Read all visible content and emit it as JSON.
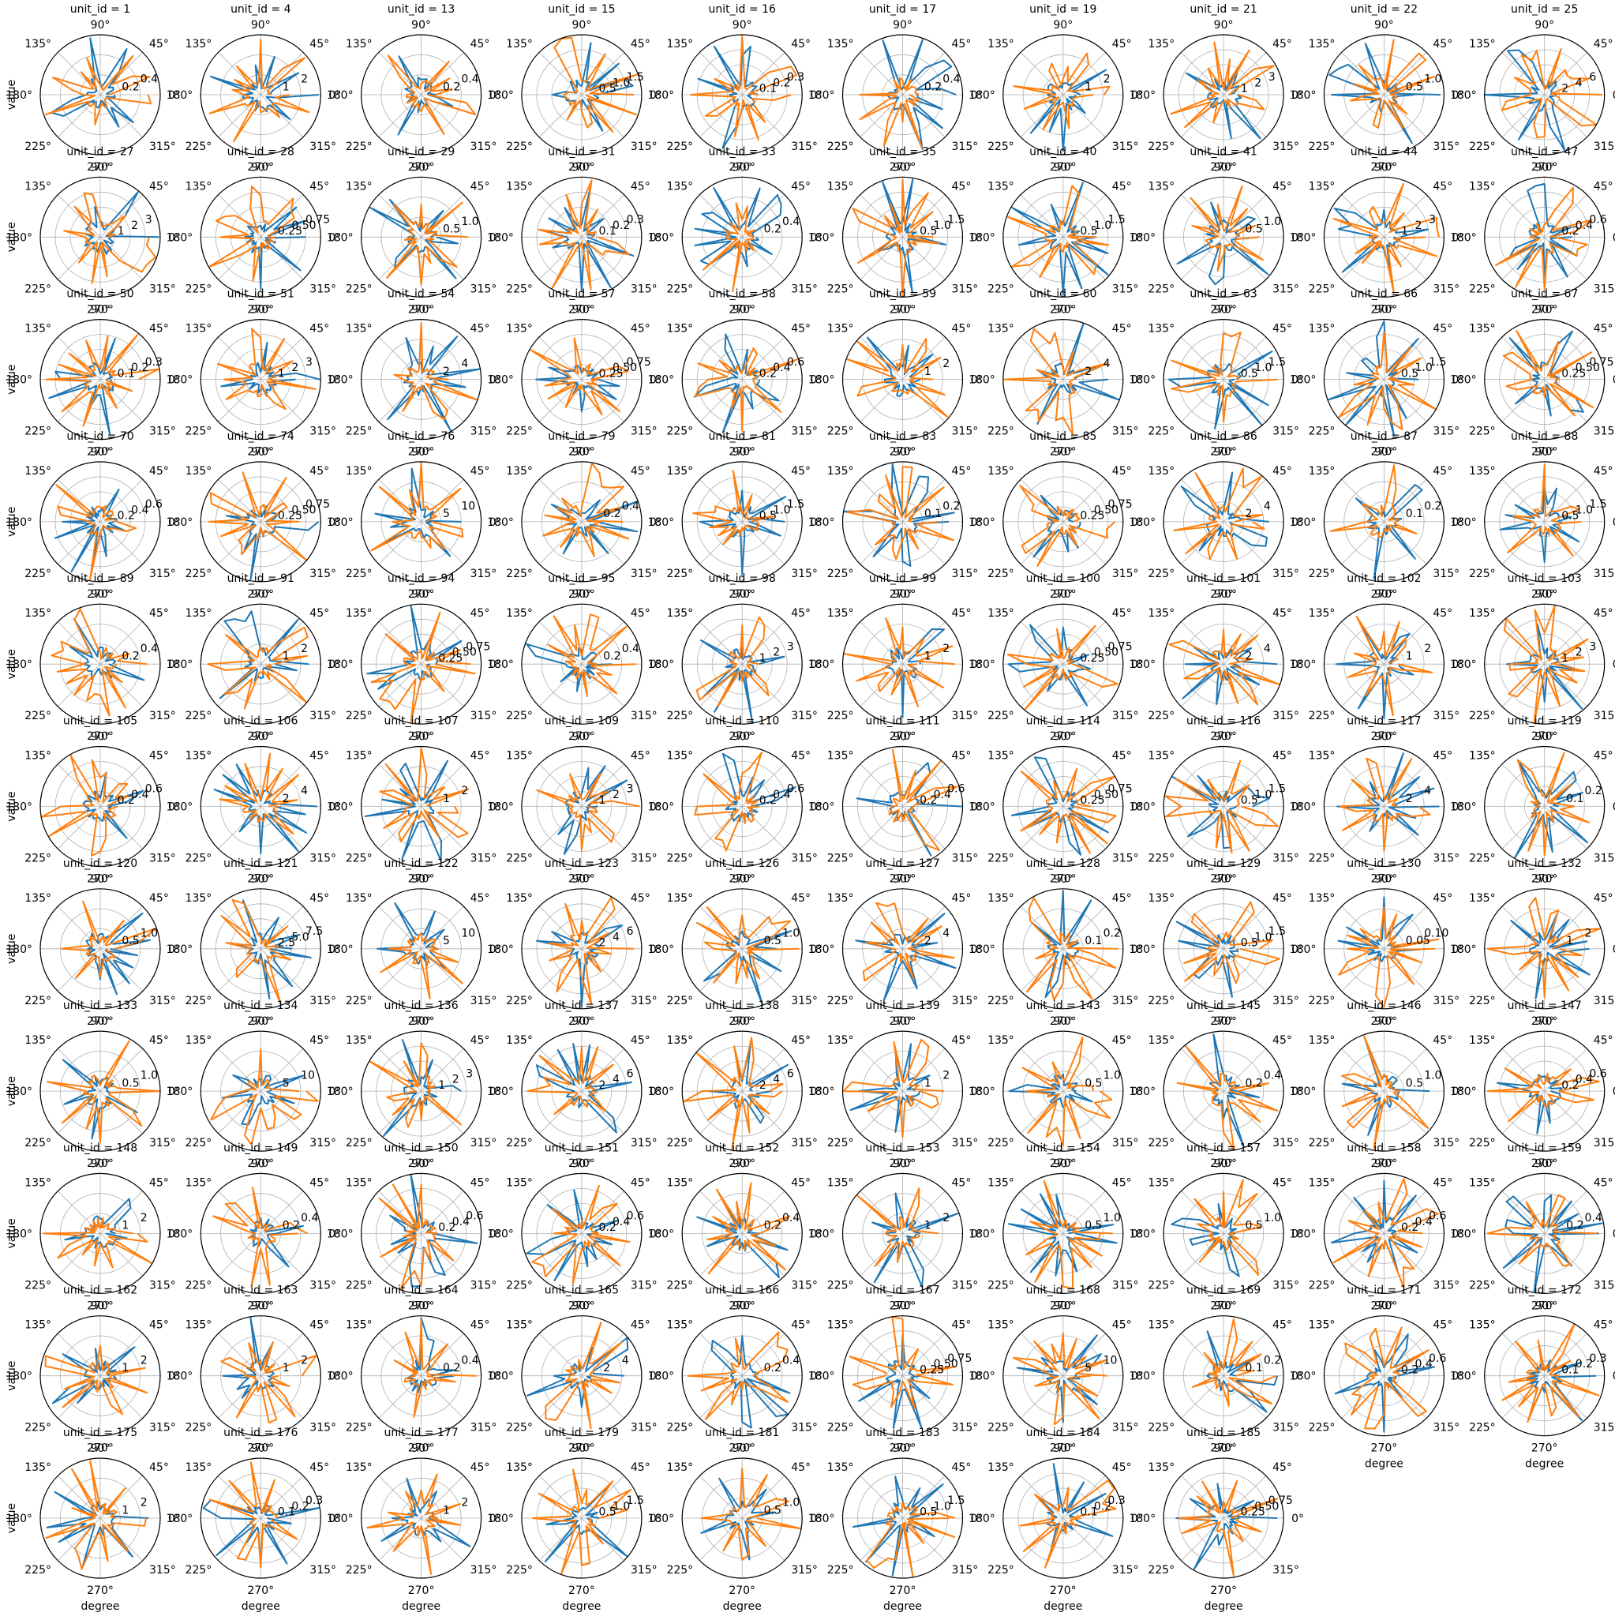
{
  "chart_data": {
    "type": "polar-line-grid",
    "colors": {
      "series_a": "#1f77b4",
      "series_b": "#ff7f0e",
      "grid": "#b0b0b0",
      "spine": "#000000"
    },
    "title_prefix": "unit_id = ",
    "xlabel": "degree",
    "ylabel": "value",
    "angle_ticks": [
      "0°",
      "45°",
      "90°",
      "135°",
      "180°",
      "225°",
      "270°",
      "315°"
    ],
    "layout": {
      "columns": 10,
      "rows": 11,
      "panels": 108
    },
    "panels": [
      {
        "unit_id": "1",
        "rticks": [
          "0.2",
          "0.4"
        ]
      },
      {
        "unit_id": "4",
        "rticks": [
          "1",
          "2"
        ]
      },
      {
        "unit_id": "13",
        "rticks": [
          "0.2",
          "0.4"
        ]
      },
      {
        "unit_id": "15",
        "rticks": [
          "0.5",
          "1.0",
          "1.5"
        ]
      },
      {
        "unit_id": "16",
        "rticks": [
          "0.1",
          "0.2",
          "0.3"
        ]
      },
      {
        "unit_id": "17",
        "rticks": [
          "0.2",
          "0.4"
        ]
      },
      {
        "unit_id": "19",
        "rticks": [
          "1",
          "2"
        ]
      },
      {
        "unit_id": "21",
        "rticks": [
          "1",
          "2",
          "3"
        ]
      },
      {
        "unit_id": "22",
        "rticks": [
          "0.5",
          "1.0"
        ]
      },
      {
        "unit_id": "25",
        "rticks": [
          "2",
          "4",
          "6"
        ]
      },
      {
        "unit_id": "27",
        "rticks": [
          "1",
          "2",
          "3"
        ]
      },
      {
        "unit_id": "28",
        "rticks": [
          "0.25",
          "0.50",
          "0.75"
        ]
      },
      {
        "unit_id": "29",
        "rticks": [
          "0.5",
          "1.0"
        ]
      },
      {
        "unit_id": "31",
        "rticks": [
          "0.1",
          "0.2",
          "0.3"
        ]
      },
      {
        "unit_id": "33",
        "rticks": [
          "0.2",
          "0.4"
        ]
      },
      {
        "unit_id": "35",
        "rticks": [
          "0.5",
          "1.0",
          "1.5"
        ]
      },
      {
        "unit_id": "40",
        "rticks": [
          "0.5",
          "1.0",
          "1.5"
        ]
      },
      {
        "unit_id": "41",
        "rticks": [
          "0.5",
          "1.0"
        ]
      },
      {
        "unit_id": "44",
        "rticks": [
          "1",
          "2",
          "3"
        ]
      },
      {
        "unit_id": "47",
        "rticks": [
          "0.2",
          "0.4",
          "0.6"
        ]
      },
      {
        "unit_id": "50",
        "rticks": [
          "0.1",
          "0.2",
          "0.3"
        ]
      },
      {
        "unit_id": "51",
        "rticks": [
          "1",
          "2",
          "3"
        ]
      },
      {
        "unit_id": "54",
        "rticks": [
          "2",
          "4"
        ]
      },
      {
        "unit_id": "57",
        "rticks": [
          "0.25",
          "0.50",
          "0.75"
        ]
      },
      {
        "unit_id": "58",
        "rticks": [
          "0.2",
          "0.4",
          "0.6"
        ]
      },
      {
        "unit_id": "59",
        "rticks": [
          "1",
          "2"
        ]
      },
      {
        "unit_id": "60",
        "rticks": [
          "2",
          "4"
        ]
      },
      {
        "unit_id": "63",
        "rticks": [
          "0.5",
          "1.0",
          "1.5"
        ]
      },
      {
        "unit_id": "66",
        "rticks": [
          "0.5",
          "1.0",
          "1.5"
        ]
      },
      {
        "unit_id": "67",
        "rticks": [
          "0.25",
          "0.50",
          "0.75"
        ]
      },
      {
        "unit_id": "70",
        "rticks": [
          "0.2",
          "0.4",
          "0.6"
        ]
      },
      {
        "unit_id": "74",
        "rticks": [
          "0.25",
          "0.50",
          "0.75"
        ]
      },
      {
        "unit_id": "76",
        "rticks": [
          "5",
          "10"
        ]
      },
      {
        "unit_id": "79",
        "rticks": [
          "0.2",
          "0.4"
        ]
      },
      {
        "unit_id": "81",
        "rticks": [
          "0.5",
          "1.0",
          "1.5"
        ]
      },
      {
        "unit_id": "83",
        "rticks": [
          "0.1",
          "0.2"
        ]
      },
      {
        "unit_id": "85",
        "rticks": [
          "0.25",
          "0.50",
          "0.75"
        ]
      },
      {
        "unit_id": "86",
        "rticks": [
          "2",
          "4"
        ]
      },
      {
        "unit_id": "87",
        "rticks": [
          "0.1",
          "0.2"
        ]
      },
      {
        "unit_id": "88",
        "rticks": [
          "0.5",
          "1.0",
          "1.5"
        ]
      },
      {
        "unit_id": "89",
        "rticks": [
          "0.2",
          "0.4"
        ]
      },
      {
        "unit_id": "91",
        "rticks": [
          "1",
          "2"
        ]
      },
      {
        "unit_id": "94",
        "rticks": [
          "0.25",
          "0.50",
          "0.75"
        ]
      },
      {
        "unit_id": "95",
        "rticks": [
          "0.2",
          "0.4"
        ]
      },
      {
        "unit_id": "98",
        "rticks": [
          "1",
          "2",
          "3"
        ]
      },
      {
        "unit_id": "99",
        "rticks": [
          "1",
          "2"
        ]
      },
      {
        "unit_id": "100",
        "rticks": [
          "0.25",
          "0.50",
          "0.75"
        ]
      },
      {
        "unit_id": "101",
        "rticks": [
          "2",
          "4"
        ]
      },
      {
        "unit_id": "102",
        "rticks": [
          "1",
          "2"
        ]
      },
      {
        "unit_id": "103",
        "rticks": [
          "1",
          "2",
          "3"
        ]
      },
      {
        "unit_id": "105",
        "rticks": [
          "0.2",
          "0.4",
          "0.6"
        ]
      },
      {
        "unit_id": "106",
        "rticks": [
          "2",
          "4"
        ]
      },
      {
        "unit_id": "107",
        "rticks": [
          "1",
          "2"
        ]
      },
      {
        "unit_id": "109",
        "rticks": [
          "1",
          "2",
          "3"
        ]
      },
      {
        "unit_id": "110",
        "rticks": [
          "0.2",
          "0.4",
          "0.6"
        ]
      },
      {
        "unit_id": "111",
        "rticks": [
          "0.2",
          "0.4",
          "0.6"
        ]
      },
      {
        "unit_id": "114",
        "rticks": [
          "0.25",
          "0.50",
          "0.75"
        ]
      },
      {
        "unit_id": "116",
        "rticks": [
          "0.5",
          "1.0",
          "1.5"
        ]
      },
      {
        "unit_id": "117",
        "rticks": [
          "2",
          "4"
        ]
      },
      {
        "unit_id": "119",
        "rticks": [
          "0.1",
          "0.2"
        ]
      },
      {
        "unit_id": "120",
        "rticks": [
          "0.5",
          "1.0"
        ]
      },
      {
        "unit_id": "121",
        "rticks": [
          "2.5",
          "5.0",
          "7.5"
        ]
      },
      {
        "unit_id": "122",
        "rticks": [
          "5",
          "10"
        ]
      },
      {
        "unit_id": "123",
        "rticks": [
          "2",
          "4",
          "6"
        ]
      },
      {
        "unit_id": "126",
        "rticks": [
          "0.5",
          "1.0"
        ]
      },
      {
        "unit_id": "127",
        "rticks": [
          "2",
          "4"
        ]
      },
      {
        "unit_id": "128",
        "rticks": [
          "0.1",
          "0.2"
        ]
      },
      {
        "unit_id": "129",
        "rticks": [
          "0.5",
          "1.0",
          "1.5"
        ]
      },
      {
        "unit_id": "130",
        "rticks": [
          "0.05",
          "0.10"
        ]
      },
      {
        "unit_id": "132",
        "rticks": [
          "1",
          "2"
        ]
      },
      {
        "unit_id": "133",
        "rticks": [
          "0.5",
          "1.0"
        ]
      },
      {
        "unit_id": "134",
        "rticks": [
          "5",
          "10"
        ]
      },
      {
        "unit_id": "136",
        "rticks": [
          "1",
          "2",
          "3"
        ]
      },
      {
        "unit_id": "137",
        "rticks": [
          "2",
          "4",
          "6"
        ]
      },
      {
        "unit_id": "138",
        "rticks": [
          "2",
          "4",
          "6"
        ]
      },
      {
        "unit_id": "139",
        "rticks": [
          "1",
          "2"
        ]
      },
      {
        "unit_id": "143",
        "rticks": [
          "0.5",
          "1.0"
        ]
      },
      {
        "unit_id": "145",
        "rticks": [
          "0.2",
          "0.4"
        ]
      },
      {
        "unit_id": "146",
        "rticks": [
          "0.5",
          "1.0"
        ]
      },
      {
        "unit_id": "147",
        "rticks": [
          "0.2",
          "0.4",
          "0.6"
        ]
      },
      {
        "unit_id": "148",
        "rticks": [
          "1",
          "2"
        ]
      },
      {
        "unit_id": "149",
        "rticks": [
          "0.2",
          "0.4"
        ]
      },
      {
        "unit_id": "150",
        "rticks": [
          "0.2",
          "0.4",
          "0.6"
        ]
      },
      {
        "unit_id": "151",
        "rticks": [
          "0.2",
          "0.4",
          "0.6"
        ]
      },
      {
        "unit_id": "152",
        "rticks": [
          "0.2",
          "0.4"
        ]
      },
      {
        "unit_id": "153",
        "rticks": [
          "1",
          "2"
        ]
      },
      {
        "unit_id": "154",
        "rticks": [
          "0.5",
          "1.0"
        ]
      },
      {
        "unit_id": "157",
        "rticks": [
          "0.5",
          "1.0"
        ]
      },
      {
        "unit_id": "158",
        "rticks": [
          "0.2",
          "0.4",
          "0.6"
        ]
      },
      {
        "unit_id": "159",
        "rticks": [
          "0.2",
          "0.4"
        ]
      },
      {
        "unit_id": "162",
        "rticks": [
          "1",
          "2"
        ]
      },
      {
        "unit_id": "163",
        "rticks": [
          "1",
          "2"
        ]
      },
      {
        "unit_id": "164",
        "rticks": [
          "0.2",
          "0.4"
        ]
      },
      {
        "unit_id": "165",
        "rticks": [
          "2",
          "4"
        ]
      },
      {
        "unit_id": "166",
        "rticks": [
          "0.2",
          "0.4"
        ]
      },
      {
        "unit_id": "167",
        "rticks": [
          "0.25",
          "0.50",
          "0.75"
        ]
      },
      {
        "unit_id": "168",
        "rticks": [
          "5",
          "10"
        ]
      },
      {
        "unit_id": "169",
        "rticks": [
          "0.1",
          "0.2"
        ]
      },
      {
        "unit_id": "171",
        "rticks": [
          "0.2",
          "0.4",
          "0.6"
        ]
      },
      {
        "unit_id": "172",
        "rticks": [
          "0.1",
          "0.2",
          "0.3"
        ]
      },
      {
        "unit_id": "175",
        "rticks": [
          "1",
          "2"
        ]
      },
      {
        "unit_id": "176",
        "rticks": [
          "0.1",
          "0.2",
          "0.3"
        ]
      },
      {
        "unit_id": "177",
        "rticks": [
          "1",
          "2"
        ]
      },
      {
        "unit_id": "179",
        "rticks": [
          "0.5",
          "1.0",
          "1.5"
        ]
      },
      {
        "unit_id": "181",
        "rticks": [
          "0.5",
          "1.0"
        ]
      },
      {
        "unit_id": "183",
        "rticks": [
          "0.5",
          "1.0",
          "1.5"
        ]
      },
      {
        "unit_id": "184",
        "rticks": [
          "0.1",
          "0.2",
          "0.3"
        ]
      },
      {
        "unit_id": "185",
        "rticks": [
          "0.25",
          "0.50",
          "0.75"
        ]
      }
    ]
  }
}
